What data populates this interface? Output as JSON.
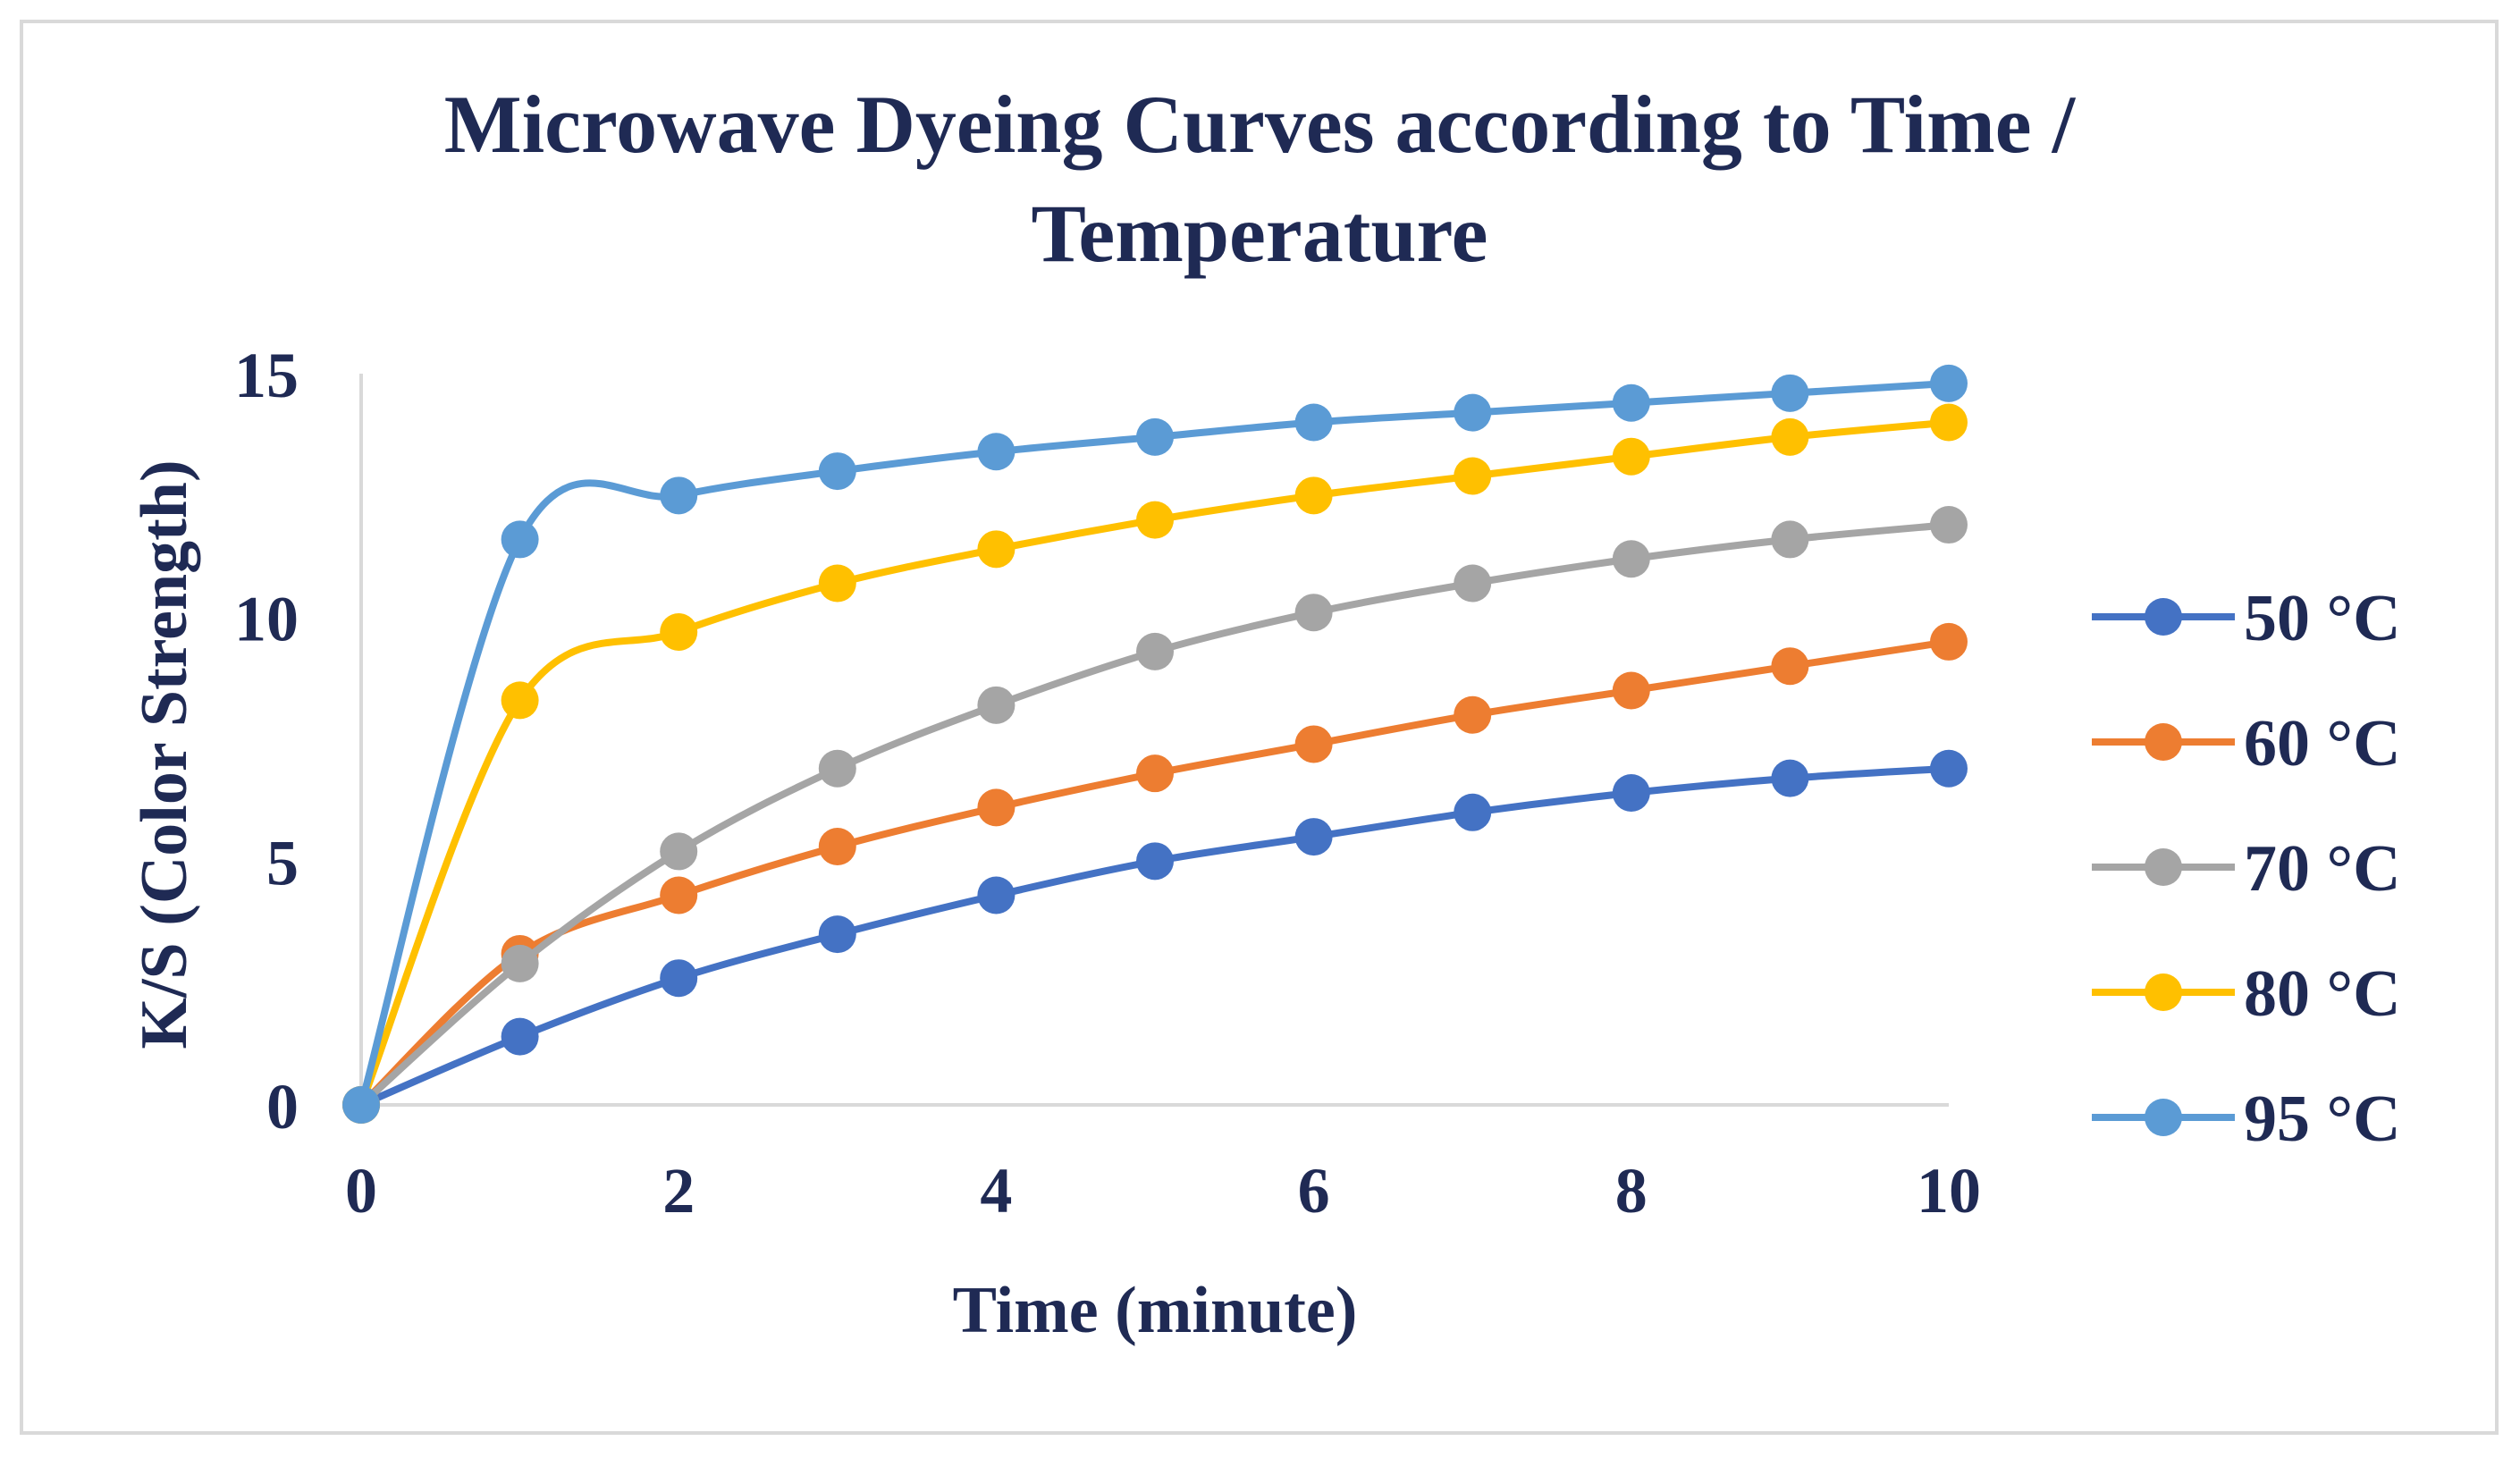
{
  "chart_data": {
    "type": "line",
    "title_lines": [
      "Microwave Dyeing Curves according to Time /",
      "Temperature"
    ],
    "xlabel": "Time (minute)",
    "ylabel": "K/S (Color Strength)",
    "xlim": [
      0,
      10
    ],
    "ylim": [
      0,
      15
    ],
    "x_ticks": [
      "0",
      "2",
      "4",
      "6",
      "8",
      "10"
    ],
    "y_ticks": [
      "0",
      "5",
      "10",
      "15"
    ],
    "legend_position": "right",
    "x": [
      0,
      1,
      2,
      3,
      4,
      5,
      6,
      7,
      8,
      9,
      10
    ],
    "series": [
      {
        "name": "50 °C",
        "color": "#4472c4",
        "values": [
          0,
          1.4,
          2.6,
          3.5,
          4.3,
          5.0,
          5.5,
          6.0,
          6.4,
          6.7,
          6.9
        ]
      },
      {
        "name": "60 °C",
        "color": "#ed7d31",
        "values": [
          0,
          3.1,
          4.3,
          5.3,
          6.1,
          6.8,
          7.4,
          8.0,
          8.5,
          9.0,
          9.5
        ]
      },
      {
        "name": "70 °C",
        "color": "#a5a5a5",
        "values": [
          0,
          2.9,
          5.2,
          6.9,
          8.2,
          9.3,
          10.1,
          10.7,
          11.2,
          11.6,
          11.9
        ]
      },
      {
        "name": "80 °C",
        "color": "#ffc000",
        "values": [
          0,
          8.3,
          9.7,
          10.7,
          11.4,
          12.0,
          12.5,
          12.9,
          13.3,
          13.7,
          14.0
        ]
      },
      {
        "name": "95 °C",
        "color": "#5b9bd5",
        "values": [
          0,
          11.6,
          12.5,
          13.0,
          13.4,
          13.7,
          14.0,
          14.2,
          14.4,
          14.6,
          14.8
        ]
      }
    ]
  }
}
